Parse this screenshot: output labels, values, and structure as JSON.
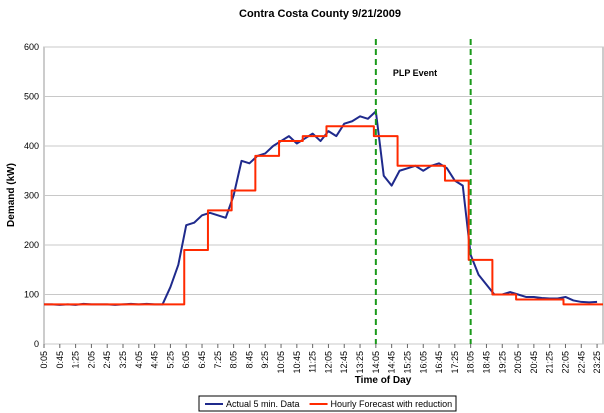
{
  "chart_data": {
    "type": "line",
    "title": "Contra Costa County 9/21/2009",
    "x_label": "Time of Day",
    "y_label": "Demand (kW)",
    "annotation": "PLP Event",
    "event_lines": [
      845,
      1085
    ],
    "event_color": "#1a9a1a",
    "xlim": [
      5,
      1420
    ],
    "ylim": [
      0,
      600
    ],
    "yticks": [
      0,
      100,
      200,
      300,
      400,
      500,
      600
    ],
    "xticks": [
      {
        "value": 5,
        "label": "0:05"
      },
      {
        "value": 45,
        "label": "0:45"
      },
      {
        "value": 85,
        "label": "1:25"
      },
      {
        "value": 125,
        "label": "2:05"
      },
      {
        "value": 165,
        "label": "2:45"
      },
      {
        "value": 205,
        "label": "3:25"
      },
      {
        "value": 245,
        "label": "4:05"
      },
      {
        "value": 285,
        "label": "4:45"
      },
      {
        "value": 325,
        "label": "5:25"
      },
      {
        "value": 365,
        "label": "6:05"
      },
      {
        "value": 405,
        "label": "6:45"
      },
      {
        "value": 445,
        "label": "7:25"
      },
      {
        "value": 485,
        "label": "8:05"
      },
      {
        "value": 525,
        "label": "8:45"
      },
      {
        "value": 565,
        "label": "9:25"
      },
      {
        "value": 605,
        "label": "10:05"
      },
      {
        "value": 645,
        "label": "10:45"
      },
      {
        "value": 685,
        "label": "11:25"
      },
      {
        "value": 725,
        "label": "12:05"
      },
      {
        "value": 765,
        "label": "12:45"
      },
      {
        "value": 805,
        "label": "13:25"
      },
      {
        "value": 845,
        "label": "14:05"
      },
      {
        "value": 885,
        "label": "14:45"
      },
      {
        "value": 925,
        "label": "15:25"
      },
      {
        "value": 965,
        "label": "16:05"
      },
      {
        "value": 1005,
        "label": "16:45"
      },
      {
        "value": 1045,
        "label": "17:25"
      },
      {
        "value": 1085,
        "label": "18:05"
      },
      {
        "value": 1125,
        "label": "18:45"
      },
      {
        "value": 1165,
        "label": "19:25"
      },
      {
        "value": 1205,
        "label": "20:05"
      },
      {
        "value": 1245,
        "label": "20:45"
      },
      {
        "value": 1285,
        "label": "21:25"
      },
      {
        "value": 1325,
        "label": "22:05"
      },
      {
        "value": 1365,
        "label": "22:45"
      },
      {
        "value": 1405,
        "label": "23:25"
      }
    ],
    "grid": true,
    "series": [
      {
        "name": "Actual 5 min. Data",
        "color": "#1f2a8c",
        "step": false,
        "x": [
          5,
          25,
          45,
          65,
          85,
          105,
          125,
          145,
          165,
          185,
          205,
          225,
          245,
          265,
          285,
          305,
          325,
          345,
          365,
          385,
          405,
          425,
          445,
          465,
          485,
          505,
          525,
          545,
          565,
          585,
          605,
          625,
          645,
          665,
          685,
          705,
          725,
          745,
          765,
          785,
          805,
          825,
          845,
          865,
          885,
          905,
          925,
          945,
          965,
          985,
          1005,
          1025,
          1045,
          1065,
          1085,
          1105,
          1125,
          1145,
          1165,
          1185,
          1205,
          1225,
          1245,
          1265,
          1285,
          1305,
          1325,
          1345,
          1365,
          1385,
          1405
        ],
        "values": [
          80,
          80,
          79,
          80,
          79,
          81,
          80,
          80,
          80,
          79,
          80,
          81,
          80,
          81,
          80,
          80,
          115,
          160,
          240,
          245,
          260,
          265,
          260,
          255,
          300,
          370,
          365,
          380,
          385,
          400,
          410,
          420,
          405,
          415,
          425,
          410,
          430,
          420,
          445,
          450,
          460,
          455,
          470,
          340,
          320,
          350,
          355,
          360,
          350,
          360,
          365,
          355,
          330,
          320,
          180,
          140,
          120,
          100,
          100,
          105,
          100,
          95,
          95,
          93,
          92,
          92,
          95,
          88,
          85,
          84,
          85
        ]
      },
      {
        "name": "Hourly Forecast with reduction",
        "color": "#ff2a00",
        "step": true,
        "x": [
          0,
          60,
          120,
          180,
          240,
          300,
          360,
          420,
          480,
          540,
          600,
          660,
          720,
          780,
          840,
          900,
          960,
          1020,
          1080,
          1140,
          1200,
          1260,
          1320,
          1380
        ],
        "values": [
          80,
          80,
          80,
          80,
          80,
          80,
          190,
          270,
          310,
          380,
          410,
          420,
          440,
          440,
          420,
          360,
          360,
          330,
          170,
          100,
          90,
          90,
          80,
          80
        ]
      }
    ]
  }
}
